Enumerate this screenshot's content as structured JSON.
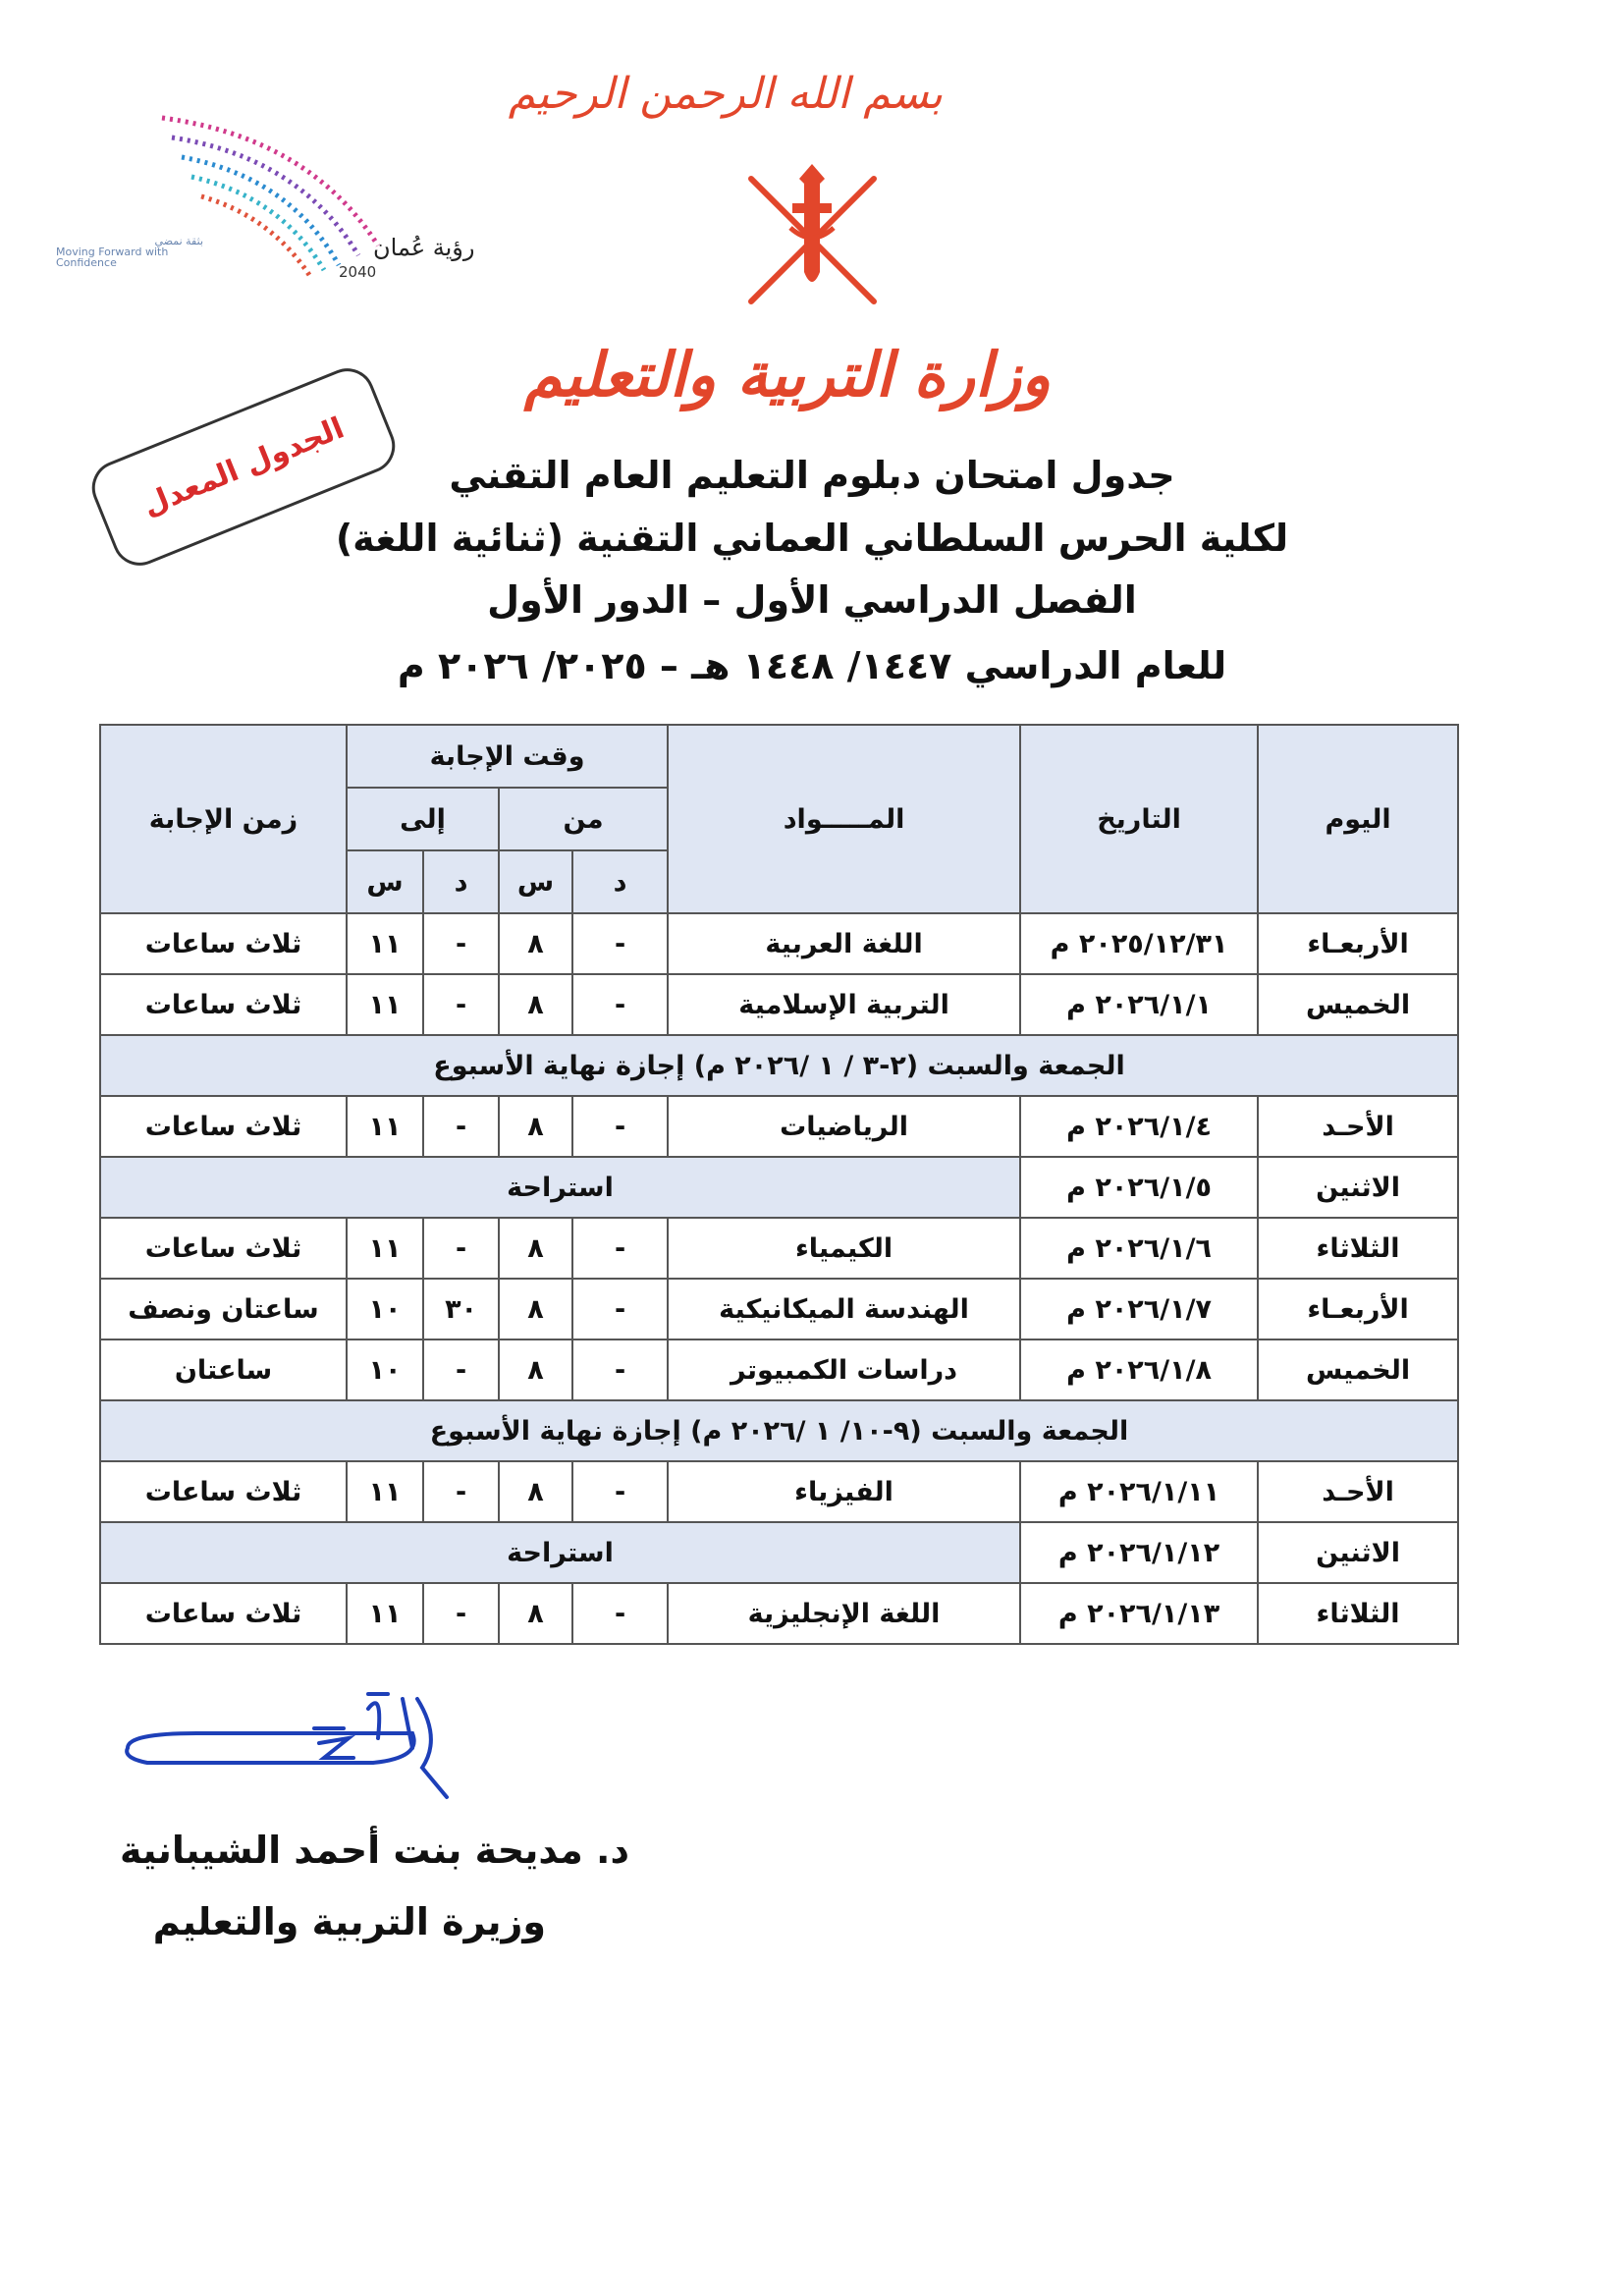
{
  "header": {
    "bismillah": "بسم الله الرحمن الرحيم",
    "ministry_logo": "وزارة التربية والتعليم",
    "vision_logo": {
      "arabic": "رؤية عُمان",
      "year": "2040",
      "tagline_ar": "بثقة نمضي",
      "tagline_en": "Moving Forward with Confidence"
    },
    "stamp": "الجدول المعدل"
  },
  "title": {
    "line1": "جدول امتحان دبلوم التعليم العام التقني",
    "line2": "لكلية الحرس السلطاني العماني التقنية (ثنائية اللغة)",
    "line3": "الفصل الدراسي الأول – الدور الأول",
    "line4": "للعام الدراسي ١٤٤٧/ ١٤٤٨ هـ  –  ٢٠٢٥/ ٢٠٢٦ م"
  },
  "table": {
    "headers": {
      "day": "اليوم",
      "date": "التاريخ",
      "subject": "المـــــواد",
      "answer_time": "وقت الإجابة",
      "from": "من",
      "to": "إلى",
      "minute": "د",
      "hour": "س",
      "duration": "زمن الإجابة"
    },
    "rows": [
      {
        "type": "exam",
        "day": "الأربعـاء",
        "date": "٢٠٢٥/١٢/٣١ م",
        "subject": "اللغة العربية",
        "from_m": "-",
        "from_h": "٨",
        "to_m": "-",
        "to_h": "١١",
        "duration": "ثلاث ساعات"
      },
      {
        "type": "exam",
        "day": "الخميس",
        "date": "٢٠٢٦/١/١ م",
        "subject": "التربية الإسلامية",
        "from_m": "-",
        "from_h": "٨",
        "to_m": "-",
        "to_h": "١١",
        "duration": "ثلاث ساعات"
      },
      {
        "type": "weekend",
        "text": "الجمعة والسبت (٢-٣ / ١ /٢٠٢٦ م) إجازة نهاية الأسبوع"
      },
      {
        "type": "exam",
        "day": "الأحـد",
        "date": "٢٠٢٦/١/٤ م",
        "subject": "الرياضيات",
        "from_m": "-",
        "from_h": "٨",
        "to_m": "-",
        "to_h": "١١",
        "duration": "ثلاث ساعات"
      },
      {
        "type": "rest",
        "day": "الاثنين",
        "date": "٢٠٢٦/١/٥ م",
        "text": "استراحة"
      },
      {
        "type": "exam",
        "day": "الثلاثاء",
        "date": "٢٠٢٦/١/٦ م",
        "subject": "الكيمياء",
        "from_m": "-",
        "from_h": "٨",
        "to_m": "-",
        "to_h": "١١",
        "duration": "ثلاث ساعات"
      },
      {
        "type": "exam",
        "day": "الأربعـاء",
        "date": "٢٠٢٦/١/٧ م",
        "subject": "الهندسة الميكانيكية",
        "from_m": "-",
        "from_h": "٨",
        "to_m": "٣٠",
        "to_h": "١٠",
        "duration": "ساعتان ونصف"
      },
      {
        "type": "exam",
        "day": "الخميس",
        "date": "٢٠٢٦/١/٨ م",
        "subject": "دراسات الكمبيوتر",
        "from_m": "-",
        "from_h": "٨",
        "to_m": "-",
        "to_h": "١٠",
        "duration": "ساعتان"
      },
      {
        "type": "weekend",
        "text": "الجمعة والسبت (٩-١٠/ ١ /٢٠٢٦ م) إجازة نهاية الأسبوع"
      },
      {
        "type": "exam",
        "day": "الأحـد",
        "date": "٢٠٢٦/١/١١ م",
        "subject": "الفيزياء",
        "from_m": "-",
        "from_h": "٨",
        "to_m": "-",
        "to_h": "١١",
        "duration": "ثلاث ساعات"
      },
      {
        "type": "rest",
        "day": "الاثنين",
        "date": "٢٠٢٦/١/١٢ م",
        "text": "استراحة"
      },
      {
        "type": "exam",
        "day": "الثلاثاء",
        "date": "٢٠٢٦/١/١٣ م",
        "subject": "اللغة الإنجليزية",
        "from_m": "-",
        "from_h": "٨",
        "to_m": "-",
        "to_h": "١١",
        "duration": "ثلاث ساعات"
      }
    ]
  },
  "footer": {
    "name": "د. مديحة بنت أحمد الشيبانية",
    "position": "وزيرة التربية والتعليم"
  },
  "colors": {
    "header_fill": "#dfe6f3",
    "logo_red": "#e2462b",
    "stamp_red": "#d82b2b",
    "signature_blue": "#1d3fb8"
  }
}
